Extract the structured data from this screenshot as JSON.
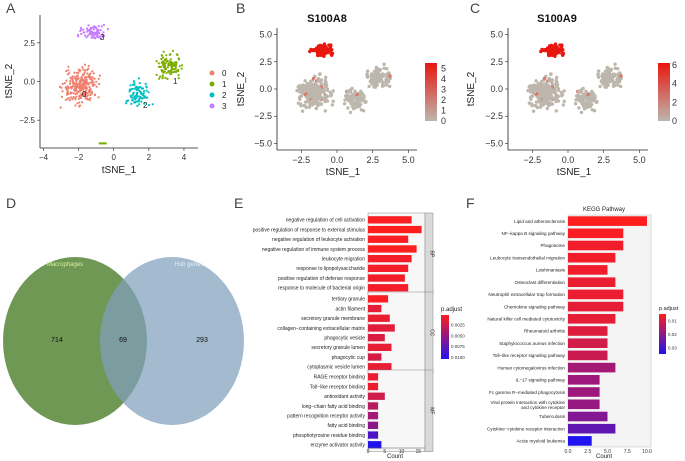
{
  "colors": {
    "cluster0": "#f0806f",
    "cluster1": "#7cae00",
    "cluster2": "#00bfc4",
    "cluster3": "#c77cff",
    "expr_low": "#bdb6ad",
    "expr_high": "#e8170f",
    "venn_left": "#5b8a3c",
    "venn_right": "#7f9fbc",
    "padj_low": "#ff1e1e",
    "padj_high": "#1f13f0"
  },
  "panels": {
    "A": {
      "letter": "A",
      "xlabel": "tSNE_1",
      "ylabel": "tSNE_2",
      "xticks": [
        "−4",
        "−2",
        "0",
        "2",
        "4"
      ],
      "yticks": [
        "2.5",
        "0.0",
        "−2.5"
      ],
      "cluster_labels": [
        "0",
        "1",
        "2",
        "3"
      ],
      "legend": [
        "0",
        "1",
        "2",
        "3"
      ]
    },
    "B": {
      "letter": "B",
      "title": "S100A8",
      "xlabel": "tSNE_1",
      "ylabel": "tSNE_2",
      "xticks": [
        "−2.5",
        "0.0",
        "2.5",
        "5.0"
      ],
      "yticks": [
        "5.0",
        "2.5",
        "0.0",
        "−2.5",
        "−5.0"
      ],
      "legend_ticks": [
        "5",
        "4",
        "3",
        "2",
        "1",
        "0"
      ]
    },
    "C": {
      "letter": "C",
      "title": "S100A9",
      "xlabel": "tSNE_1",
      "ylabel": "tSNE_2",
      "xticks": [
        "−2.5",
        "0.0",
        "2.5",
        "5.0"
      ],
      "yticks": [
        "5.0",
        "2.5",
        "0.0",
        "−2.5",
        "−5.0"
      ],
      "legend_ticks": [
        "6",
        "4",
        "2",
        "0"
      ]
    },
    "D": {
      "letter": "D",
      "left_label": "Macrophages",
      "right_label": "Hub genes",
      "left_only": "714",
      "overlap": "69",
      "right_only": "293"
    },
    "E": {
      "letter": "E",
      "xlabel": "Count",
      "xticks": [
        "0",
        "5",
        "10",
        "15"
      ],
      "legend_title": "p.adjust",
      "legend_ticks": [
        "0.0025",
        "0.0050",
        "0.0075",
        "0.0100"
      ],
      "facets": [
        {
          "name": "BP",
          "terms": [
            {
              "term": "negative regulation of cell activation",
              "count": 13,
              "padj": 0.0005
            },
            {
              "term": "positive regulation of response to external stimulus",
              "count": 16,
              "padj": 0.0003
            },
            {
              "term": "negative regulation of leukocyte activation",
              "count": 12,
              "padj": 0.0005
            },
            {
              "term": "negative regulation of immune system process",
              "count": 14.5,
              "padj": 0.0004
            },
            {
              "term": "leukocyte migration",
              "count": 13,
              "padj": 0.0008
            },
            {
              "term": "response to lipopolysaccharide",
              "count": 12,
              "padj": 0.0008
            },
            {
              "term": "positive regulation of defense response",
              "count": 11,
              "padj": 0.0009
            },
            {
              "term": "response to molecule of bacterial origin",
              "count": 12,
              "padj": 0.0008
            }
          ]
        },
        {
          "name": "CC",
          "terms": [
            {
              "term": "tertiary granule",
              "count": 6,
              "padj": 0.0006
            },
            {
              "term": "actin filament",
              "count": 4,
              "padj": 0.0015
            },
            {
              "term": "secretory granule membrane",
              "count": 6.5,
              "padj": 0.0012
            },
            {
              "term": "collagen−containing extracellular matrix",
              "count": 8,
              "padj": 0.0016
            },
            {
              "term": "phagocytic vesicle",
              "count": 5,
              "padj": 0.002
            },
            {
              "term": "secretory granule lumen",
              "count": 7,
              "padj": 0.0014
            },
            {
              "term": "phagocytic cup",
              "count": 4,
              "padj": 0.0022
            },
            {
              "term": "cytoplasmic vesicle lumen",
              "count": 7,
              "padj": 0.0014
            }
          ]
        },
        {
          "name": "MF",
          "terms": [
            {
              "term": "RAGE receptor binding",
              "count": 3,
              "padj": 0.0012
            },
            {
              "term": "Toll−like receptor binding",
              "count": 3,
              "padj": 0.0012
            },
            {
              "term": "antioxidant activity",
              "count": 5,
              "padj": 0.0025
            },
            {
              "term": "long−chain fatty acid binding",
              "count": 3,
              "padj": 0.0035
            },
            {
              "term": "pattern recognition receptor activity",
              "count": 3,
              "padj": 0.0045
            },
            {
              "term": "fatty acid binding",
              "count": 3,
              "padj": 0.0055
            },
            {
              "term": "phosphotyrosine residue binding",
              "count": 3,
              "padj": 0.0085
            },
            {
              "term": "enzyme activator activity",
              "count": 4,
              "padj": 0.0105
            }
          ]
        }
      ]
    },
    "F": {
      "letter": "F",
      "title": "KEGG Pathway",
      "xlabel": "Count",
      "xticks": [
        "0.0",
        "2.5",
        "5.0",
        "7.5",
        "10.0"
      ],
      "legend_title": "p.adjust",
      "legend_ticks": [
        "0.01",
        "0.02",
        "0.03"
      ],
      "terms": [
        {
          "term": "Lipid and atherosclerosis",
          "count": 10,
          "padj": 0.001
        },
        {
          "term": "NF−kappa B signaling pathway",
          "count": 7,
          "padj": 0.002
        },
        {
          "term": "Phagosome",
          "count": 7,
          "padj": 0.003
        },
        {
          "term": "Leukocyte transendothelial migration",
          "count": 6,
          "padj": 0.003
        },
        {
          "term": "Leishmaniasis",
          "count": 5,
          "padj": 0.003
        },
        {
          "term": "Osteoclast differentiation",
          "count": 6,
          "padj": 0.004
        },
        {
          "term": "Neutrophil extracellular trap formation",
          "count": 7,
          "padj": 0.004
        },
        {
          "term": "Chemokine signaling pathway",
          "count": 7,
          "padj": 0.005
        },
        {
          "term": "Natural killer cell mediated cytotoxicity",
          "count": 6,
          "padj": 0.005
        },
        {
          "term": "Rheumatoid arthritis",
          "count": 5,
          "padj": 0.006
        },
        {
          "term": "Staphylococcus aureus infection",
          "count": 5,
          "padj": 0.008
        },
        {
          "term": "Toll−like receptor signaling pathway",
          "count": 5,
          "padj": 0.009
        },
        {
          "term": "Human cytomegalovirus infection",
          "count": 6,
          "padj": 0.015
        },
        {
          "term": "IL−17 signaling pathway",
          "count": 4,
          "padj": 0.016
        },
        {
          "term": "Fc gamma R−mediated phagocytosis",
          "count": 4,
          "padj": 0.016
        },
        {
          "term": "Viral protein interaction with cytokine and cytokine receptor",
          "count": 4,
          "padj": 0.017
        },
        {
          "term": "Tuberculosis",
          "count": 5,
          "padj": 0.02
        },
        {
          "term": "Cytokine−cytokine receptor interaction",
          "count": 6,
          "padj": 0.025
        },
        {
          "term": "Acute myeloid leukemia",
          "count": 3,
          "padj": 0.035
        }
      ]
    }
  },
  "chart_data": [
    {
      "type": "scatter",
      "panel": "A",
      "title": "",
      "xlabel": "tSNE_1",
      "ylabel": "tSNE_2",
      "xlim": [
        -4.2,
        4.8
      ],
      "ylim": [
        -4.3,
        4.3
      ],
      "series": [
        {
          "name": "0",
          "center": [
            -1.8,
            -0.2
          ]
        },
        {
          "name": "1",
          "center": [
            3.2,
            1.0
          ]
        },
        {
          "name": "2",
          "center": [
            1.4,
            -0.9
          ]
        },
        {
          "name": "3",
          "center": [
            -1.0,
            3.3
          ]
        }
      ]
    },
    {
      "type": "scatter",
      "panel": "B",
      "title": "S100A8",
      "xlabel": "tSNE_1",
      "ylabel": "tSNE_2",
      "xlim": [
        -4.2,
        5.6
      ],
      "ylim": [
        -5.6,
        5.6
      ],
      "colorbar_range": [
        0,
        5.5
      ]
    },
    {
      "type": "scatter",
      "panel": "C",
      "title": "S100A9",
      "xlabel": "tSNE_1",
      "ylabel": "tSNE_2",
      "xlim": [
        -4.2,
        5.6
      ],
      "ylim": [
        -5.6,
        5.6
      ],
      "colorbar_range": [
        0,
        6.2
      ]
    },
    {
      "type": "bar",
      "panel": "E",
      "xlabel": "Count",
      "xlim": [
        0,
        17
      ]
    },
    {
      "type": "bar",
      "panel": "F",
      "title": "KEGG Pathway",
      "xlabel": "Count",
      "xlim": [
        0,
        10.5
      ]
    }
  ]
}
